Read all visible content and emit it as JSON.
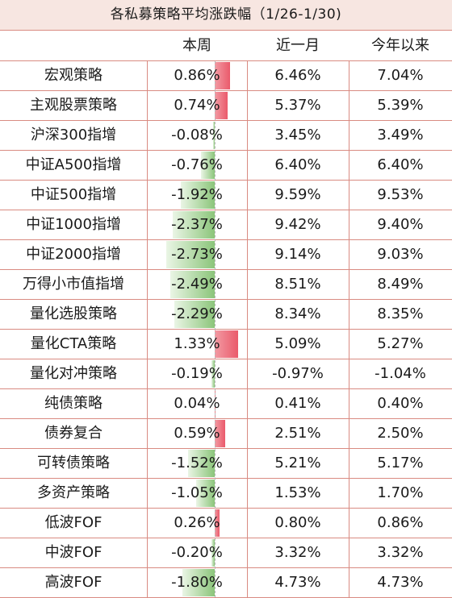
{
  "title": "各私募策略平均涨跌幅（1/26-1/30)",
  "headers": [
    "",
    "本周",
    "近一月",
    "今年以来"
  ],
  "colors": {
    "positive_bar": "#ea5a6b",
    "negative_bar": "#8bc57a",
    "border": "#d98b82",
    "title_bg": "#f7e6e1"
  },
  "rows": [
    {
      "name": "宏观策略",
      "week": "0.86%",
      "month": "6.46%",
      "ytd": "7.04%"
    },
    {
      "name": "主观股票策略",
      "week": "0.74%",
      "month": "5.37%",
      "ytd": "5.39%"
    },
    {
      "name": "沪深300指增",
      "week": "-0.08%",
      "month": "3.45%",
      "ytd": "3.49%"
    },
    {
      "name": "中证A500指增",
      "week": "-0.76%",
      "month": "6.40%",
      "ytd": "6.40%"
    },
    {
      "name": "中证500指增",
      "week": "-1.92%",
      "month": "9.59%",
      "ytd": "9.53%"
    },
    {
      "name": "中证1000指增",
      "week": "-2.37%",
      "month": "9.42%",
      "ytd": "9.40%"
    },
    {
      "name": "中证2000指增",
      "week": "-2.73%",
      "month": "9.14%",
      "ytd": "9.03%"
    },
    {
      "name": "万得小市值指增",
      "week": "-2.49%",
      "month": "8.51%",
      "ytd": "8.49%"
    },
    {
      "name": "量化选股策略",
      "week": "-2.29%",
      "month": "8.34%",
      "ytd": "8.35%"
    },
    {
      "name": "量化CTA策略",
      "week": "1.33%",
      "month": "5.09%",
      "ytd": "5.27%"
    },
    {
      "name": "量化对冲策略",
      "week": "-0.19%",
      "month": "-0.97%",
      "ytd": "-1.04%"
    },
    {
      "name": "纯债策略",
      "week": "0.04%",
      "month": "0.41%",
      "ytd": "0.40%"
    },
    {
      "name": "债券复合",
      "week": "0.59%",
      "month": "2.51%",
      "ytd": "2.50%"
    },
    {
      "name": "可转债策略",
      "week": "-1.52%",
      "month": "5.21%",
      "ytd": "5.17%"
    },
    {
      "name": "多资产策略",
      "week": "-1.05%",
      "month": "1.53%",
      "ytd": "1.70%"
    },
    {
      "name": "低波FOF",
      "week": "0.26%",
      "month": "0.80%",
      "ytd": "0.86%"
    },
    {
      "name": "中波FOF",
      "week": "-0.20%",
      "month": "3.32%",
      "ytd": "3.32%"
    },
    {
      "name": "高波FOF",
      "week": "-1.80%",
      "month": "4.73%",
      "ytd": "4.73%"
    }
  ]
}
